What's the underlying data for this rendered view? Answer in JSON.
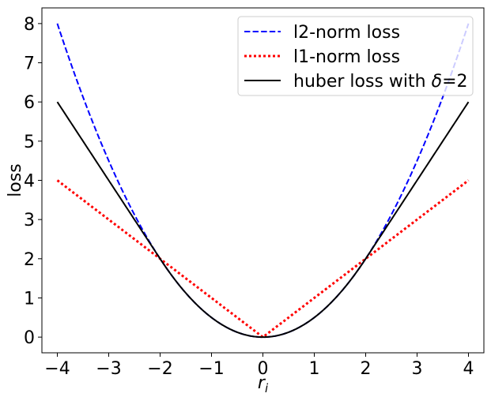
{
  "chart_data": {
    "type": "line",
    "xlabel": "r_i",
    "ylabel": "loss",
    "xlim": [
      -4.3,
      4.3
    ],
    "ylim": [
      -0.4,
      8.4
    ],
    "xticks": [
      -4,
      -3,
      -2,
      -1,
      0,
      1,
      2,
      3,
      4
    ],
    "xtick_labels": [
      "−4",
      "−3",
      "−2",
      "−1",
      "0",
      "1",
      "2",
      "3",
      "4"
    ],
    "yticks": [
      0,
      1,
      2,
      3,
      4,
      5,
      6,
      7,
      8
    ],
    "ytick_labels": [
      "0",
      "1",
      "2",
      "3",
      "4",
      "5",
      "6",
      "7",
      "8"
    ],
    "grid": false,
    "legend_position": "top-right",
    "x": [
      -4,
      -3.5,
      -3,
      -2.5,
      -2,
      -1.5,
      -1,
      -0.5,
      0,
      0.5,
      1,
      1.5,
      2,
      2.5,
      3,
      3.5,
      4
    ],
    "series": [
      {
        "name": "l2-norm loss",
        "color": "#0000ff",
        "style": "dashed",
        "values": [
          8,
          6.125,
          4.5,
          3.125,
          2,
          1.125,
          0.5,
          0.125,
          0,
          0.125,
          0.5,
          1.125,
          2,
          3.125,
          4.5,
          6.125,
          8
        ]
      },
      {
        "name": "l1-norm loss",
        "color": "#ff0000",
        "style": "dotted",
        "values": [
          4,
          3.5,
          3,
          2.5,
          2,
          1.5,
          1,
          0.5,
          0,
          0.5,
          1,
          1.5,
          2,
          2.5,
          3,
          3.5,
          4
        ]
      },
      {
        "name_prefix": "huber loss with ",
        "name_symbol": "δ",
        "name_suffix": "=2",
        "color": "#000000",
        "style": "solid",
        "values": [
          6,
          5,
          4,
          3,
          2,
          1.125,
          0.5,
          0.125,
          0,
          0.125,
          0.5,
          1.125,
          2,
          3,
          4,
          5,
          6
        ]
      }
    ]
  }
}
